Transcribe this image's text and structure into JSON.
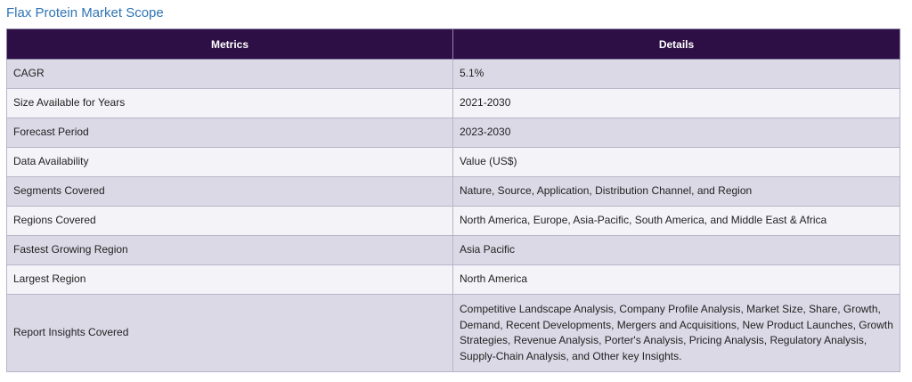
{
  "page": {
    "title": "Flax Protein Market Scope"
  },
  "table": {
    "headers": [
      "Metrics",
      "Details"
    ],
    "rows": [
      {
        "metric": "CAGR",
        "detail": "5.1%"
      },
      {
        "metric": "Size Available for Years",
        "detail": "2021-2030"
      },
      {
        "metric": "Forecast Period",
        "detail": "2023-2030"
      },
      {
        "metric": "Data Availability",
        "detail": "Value (US$)"
      },
      {
        "metric": "Segments Covered",
        "detail": "Nature, Source, Application, Distribution Channel, and Region"
      },
      {
        "metric": "Regions Covered",
        "detail": "North America, Europe, Asia-Pacific, South America, and Middle East & Africa"
      },
      {
        "metric": "Fastest Growing Region",
        "detail": "Asia Pacific"
      },
      {
        "metric": "Largest Region",
        "detail": "North America"
      },
      {
        "metric": "Report Insights Covered",
        "detail": "Competitive Landscape Analysis, Company Profile Analysis, Market Size, Share, Growth, Demand, Recent Developments, Mergers and Acquisitions, New Product Launches, Growth Strategies, Revenue Analysis, Porter's Analysis, Pricing Analysis, Regulatory Analysis, Supply-Chain Analysis, and Other key Insights."
      }
    ]
  },
  "colors": {
    "title": "#2f74b5",
    "header_bg": "#2e0f45",
    "row_shaded": "#dcd9e6",
    "row_light": "#f4f3f7"
  }
}
